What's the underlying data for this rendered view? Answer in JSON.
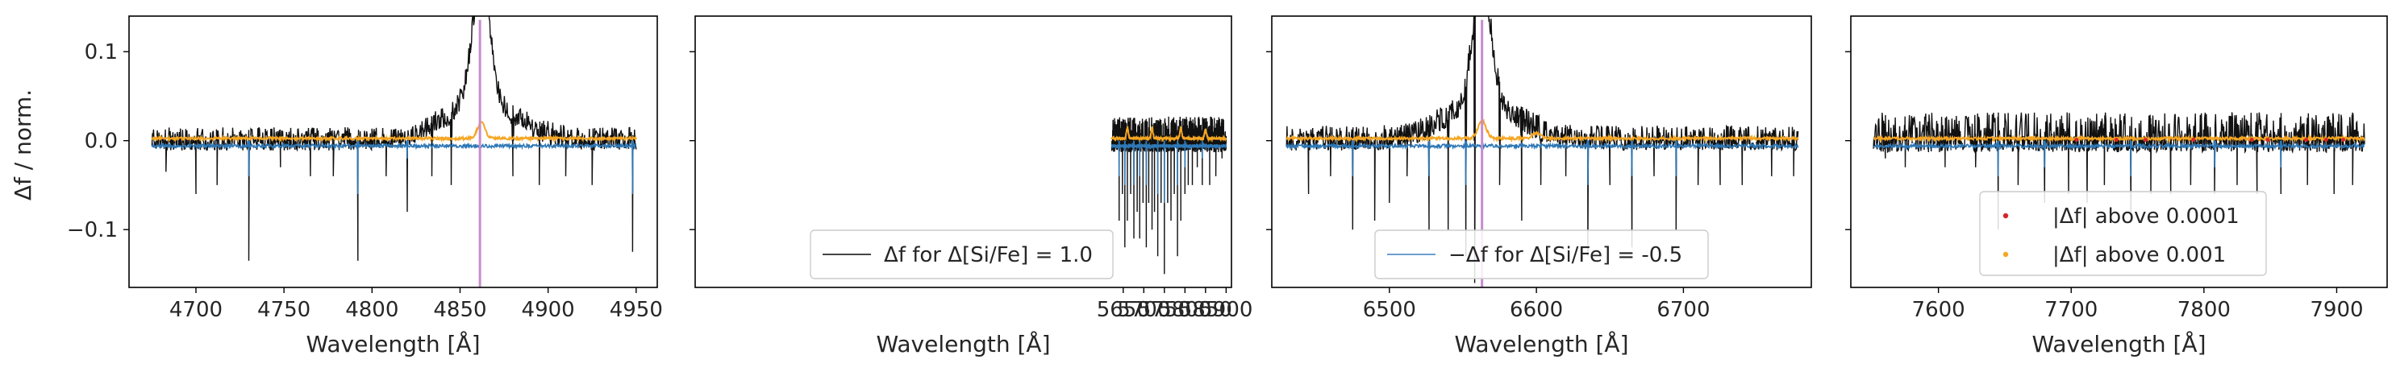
{
  "figure": {
    "ylabel": "Δf / norm.",
    "xlabel": "Wavelength [Å]"
  },
  "chart_data": [
    {
      "type": "line",
      "xlim": [
        4662,
        4962
      ],
      "ylim": [
        -0.165,
        0.14
      ],
      "xticks": [
        "4700",
        "4750",
        "4800",
        "4850",
        "4900",
        "4950"
      ],
      "yticks": [
        "0.1",
        "0.0",
        "−0.1"
      ],
      "ytick_values": [
        0.1,
        0.0,
        -0.1
      ],
      "x_range": [
        4675,
        4950
      ],
      "line_marker": 4861.3,
      "peak": {
        "x": 4862,
        "height": 0.14,
        "width": 5
      },
      "black_spikes": [
        [
          4683,
          -0.035
        ],
        [
          4700,
          -0.06
        ],
        [
          4712,
          -0.05
        ],
        [
          4730,
          -0.135
        ],
        [
          4748,
          -0.03
        ],
        [
          4765,
          -0.04
        ],
        [
          4778,
          -0.04
        ],
        [
          4792,
          -0.135
        ],
        [
          4808,
          -0.04
        ],
        [
          4820,
          -0.08
        ],
        [
          4834,
          -0.04
        ],
        [
          4845,
          -0.05
        ],
        [
          4880,
          -0.04
        ],
        [
          4895,
          -0.05
        ],
        [
          4910,
          -0.04
        ],
        [
          4925,
          -0.05
        ],
        [
          4948,
          -0.125
        ]
      ],
      "blue_spikes": [
        [
          4730,
          -0.04
        ],
        [
          4792,
          -0.06
        ],
        [
          4820,
          -0.02
        ],
        [
          4948,
          -0.06
        ]
      ],
      "orange_bumps": [
        [
          4862,
          0.018
        ]
      ],
      "noise_up": 0.018,
      "noise_down": 0.008
    },
    {
      "type": "line",
      "xlim": [
        4610,
        5913
      ],
      "ylim": [
        -0.165,
        0.14
      ],
      "xticks": [
        "5650",
        "5700",
        "5750",
        "5800",
        "5850",
        "5900"
      ],
      "yticks": [],
      "ytick_values": [
        0.1,
        0.0,
        -0.1
      ],
      "x_range": [
        5622,
        5900
      ],
      "line_marker": null,
      "peak": null,
      "black_spikes": [
        [
          5640,
          -0.09
        ],
        [
          5648,
          -0.06
        ],
        [
          5654,
          -0.12
        ],
        [
          5660,
          -0.09
        ],
        [
          5668,
          -0.06
        ],
        [
          5676,
          -0.11
        ],
        [
          5684,
          -0.08
        ],
        [
          5690,
          -0.11
        ],
        [
          5698,
          -0.07
        ],
        [
          5706,
          -0.12
        ],
        [
          5712,
          -0.07
        ],
        [
          5720,
          -0.1
        ],
        [
          5726,
          -0.08
        ],
        [
          5734,
          -0.13
        ],
        [
          5742,
          -0.07
        ],
        [
          5750,
          -0.15
        ],
        [
          5758,
          -0.07
        ],
        [
          5766,
          -0.09
        ],
        [
          5774,
          -0.06
        ],
        [
          5782,
          -0.13
        ],
        [
          5790,
          -0.09
        ],
        [
          5800,
          -0.06
        ],
        [
          5808,
          -0.05
        ],
        [
          5818,
          -0.05
        ],
        [
          5830,
          -0.03
        ],
        [
          5842,
          -0.05
        ],
        [
          5860,
          -0.05
        ],
        [
          5875,
          -0.04
        ],
        [
          5890,
          -0.02
        ]
      ],
      "blue_spikes": [
        [
          5640,
          -0.04
        ],
        [
          5654,
          -0.05
        ],
        [
          5676,
          -0.05
        ],
        [
          5690,
          -0.04
        ],
        [
          5706,
          -0.05
        ],
        [
          5734,
          -0.06
        ],
        [
          5750,
          -0.07
        ],
        [
          5782,
          -0.05
        ],
        [
          5800,
          -0.03
        ],
        [
          5842,
          -0.02
        ]
      ],
      "orange_bumps": [
        [
          5660,
          0.012
        ],
        [
          5720,
          0.012
        ],
        [
          5790,
          0.012
        ],
        [
          5850,
          0.01
        ]
      ],
      "noise_up": 0.03,
      "noise_down": 0.01
    },
    {
      "type": "line",
      "xlim": [
        6420,
        6787
      ],
      "ylim": [
        -0.165,
        0.14
      ],
      "xticks": [
        "6500",
        "6600",
        "6700"
      ],
      "yticks": [],
      "ytick_values": [
        0.1,
        0.0,
        -0.1
      ],
      "x_range": [
        6430,
        6778
      ],
      "line_marker": 6563,
      "peak": {
        "x": 6563,
        "height": 0.14,
        "width": 6
      },
      "black_spikes": [
        [
          6445,
          -0.06
        ],
        [
          6460,
          -0.04
        ],
        [
          6475,
          -0.1
        ],
        [
          6490,
          -0.09
        ],
        [
          6500,
          -0.07
        ],
        [
          6512,
          -0.04
        ],
        [
          6527,
          -0.1
        ],
        [
          6540,
          -0.1
        ],
        [
          6552,
          -0.13
        ],
        [
          6558,
          -0.16
        ],
        [
          6575,
          -0.05
        ],
        [
          6590,
          -0.09
        ],
        [
          6603,
          -0.05
        ],
        [
          6620,
          -0.04
        ],
        [
          6635,
          -0.13
        ],
        [
          6650,
          -0.05
        ],
        [
          6665,
          -0.12
        ],
        [
          6680,
          -0.04
        ],
        [
          6695,
          -0.1
        ],
        [
          6710,
          -0.05
        ],
        [
          6725,
          -0.05
        ],
        [
          6740,
          -0.05
        ],
        [
          6760,
          -0.04
        ],
        [
          6775,
          -0.04
        ]
      ],
      "blue_spikes": [
        [
          6475,
          -0.04
        ],
        [
          6527,
          -0.04
        ],
        [
          6552,
          -0.05
        ],
        [
          6635,
          -0.05
        ],
        [
          6665,
          -0.04
        ],
        [
          6695,
          -0.04
        ]
      ],
      "orange_bumps": [
        [
          6563,
          0.02
        ],
        [
          6600,
          0.006
        ]
      ],
      "noise_up": 0.02,
      "noise_down": 0.008
    },
    {
      "type": "line",
      "xlim": [
        7534,
        7938
      ],
      "ylim": [
        -0.165,
        0.14
      ],
      "xticks": [
        "7600",
        "7700",
        "7800",
        "7900"
      ],
      "yticks": [],
      "ytick_values": [
        0.1,
        0.0,
        -0.1
      ],
      "x_range": [
        7551,
        7921
      ],
      "line_marker": null,
      "peak": null,
      "black_spikes": [
        [
          7560,
          -0.02
        ],
        [
          7575,
          -0.03
        ],
        [
          7605,
          -0.03
        ],
        [
          7628,
          -0.03
        ],
        [
          7645,
          -0.1
        ],
        [
          7660,
          -0.05
        ],
        [
          7680,
          -0.07
        ],
        [
          7698,
          -0.06
        ],
        [
          7712,
          -0.07
        ],
        [
          7725,
          -0.05
        ],
        [
          7745,
          -0.08
        ],
        [
          7760,
          -0.06
        ],
        [
          7775,
          -0.06
        ],
        [
          7790,
          -0.05
        ],
        [
          7808,
          -0.06
        ],
        [
          7825,
          -0.05
        ],
        [
          7840,
          -0.06
        ],
        [
          7858,
          -0.06
        ],
        [
          7878,
          -0.05
        ],
        [
          7898,
          -0.06
        ],
        [
          7912,
          -0.05
        ]
      ],
      "blue_spikes": [
        [
          7645,
          -0.04
        ],
        [
          7680,
          -0.03
        ],
        [
          7745,
          -0.04
        ],
        [
          7808,
          -0.03
        ],
        [
          7858,
          -0.03
        ]
      ],
      "orange_bumps": [],
      "noise_up": 0.035,
      "noise_down": 0.01,
      "red_points": [
        7704,
        7734,
        7756,
        7792,
        7836,
        7848,
        7877,
        7892,
        7905
      ],
      "orange_point_range": [
        7620,
        7915
      ]
    }
  ],
  "legends": [
    {
      "panel": 1,
      "text": "Δf for Δ[Si/Fe] = 1.0",
      "style": "line",
      "color": "#444444"
    },
    {
      "panel": 2,
      "text": "−Δf for Δ[Si/Fe] = -0.5",
      "style": "line",
      "color": "#6a9fd0"
    },
    {
      "panel": 3,
      "text": "|Δf| above 0.0001",
      "style": "dot",
      "color": "#d62728"
    },
    {
      "panel": 3,
      "text": "|Δf| above 0.001",
      "style": "dot",
      "color": "#f5a623"
    }
  ],
  "colors": {
    "black_line": "#111111",
    "blue_line": "#2f78b5",
    "orange_line": "#f5a623",
    "marker_line": "#c78ccf",
    "red_point": "#d62728"
  }
}
